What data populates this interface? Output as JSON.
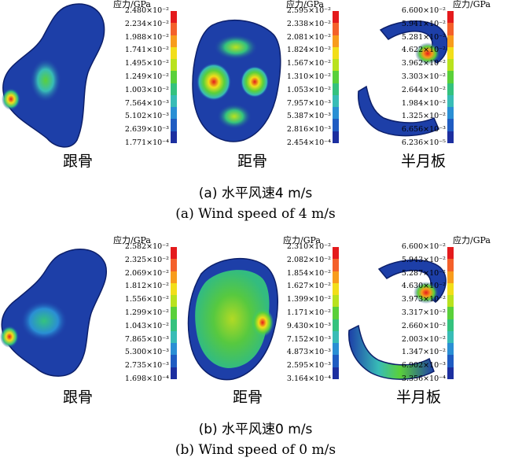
{
  "rows": [
    {
      "caption_zh": "(a) 水平风速4 m/s",
      "caption_en": "(a) Wind speed of 4 m/s",
      "panels": [
        {
          "name": "跟骨",
          "unit": "应力/GPa",
          "labels": [
            "2.480×10⁻²",
            "2.234×10⁻²",
            "1.988×10⁻²",
            "1.741×10⁻²",
            "1.495×10⁻²",
            "1.249×10⁻²",
            "1.003×10⁻²",
            "7.564×10⁻³",
            "5.102×10⁻³",
            "2.639×10⁻³",
            "1.771×10⁻⁴"
          ]
        },
        {
          "name": "距骨",
          "unit": "应力/GPa",
          "labels": [
            "2.595×10⁻²",
            "2.338×10⁻²",
            "2.081×10⁻²",
            "1.824×10⁻²",
            "1.567×10⁻²",
            "1.310×10⁻²",
            "1.053×10⁻²",
            "7.957×10⁻³",
            "5.387×10⁻³",
            "2.816×10⁻³",
            "2.454×10⁻⁴"
          ]
        },
        {
          "name": "半月板",
          "unit": "应力/GPa",
          "labels": [
            "6.600×10⁻²",
            "5.941×10⁻²",
            "5.281×10⁻²",
            "4.622×10⁻²",
            "3.962×10⁻²",
            "3.303×10⁻²",
            "2.644×10⁻²",
            "1.984×10⁻²",
            "1.325×10⁻²",
            "6.656×10⁻³",
            "6.236×10⁻⁵"
          ]
        }
      ]
    },
    {
      "caption_zh": "(b) 水平风速0 m/s",
      "caption_en": "(b) Wind speed of 0 m/s",
      "panels": [
        {
          "name": "跟骨",
          "unit": "应力/GPa",
          "labels": [
            "2.582×10⁻²",
            "2.325×10⁻²",
            "2.069×10⁻²",
            "1.812×10⁻²",
            "1.556×10⁻²",
            "1.299×10⁻²",
            "1.043×10⁻²",
            "7.865×10⁻³",
            "5.300×10⁻³",
            "2.735×10⁻³",
            "1.698×10⁻⁴"
          ]
        },
        {
          "name": "距骨",
          "unit": "应力/GPa",
          "labels": [
            "2.310×10⁻²",
            "2.082×10⁻²",
            "1.854×10⁻²",
            "1.627×10⁻²",
            "1.399×10⁻²",
            "1.171×10⁻²",
            "9.430×10⁻³",
            "7.152×10⁻³",
            "4.873×10⁻³",
            "2.595×10⁻³",
            "3.164×10⁻⁴"
          ]
        },
        {
          "name": "半月板",
          "unit": "应力/GPa",
          "labels": [
            "6.600×10⁻²",
            "5.943×10⁻²",
            "5.287×10⁻²",
            "4.630×10⁻²",
            "3.973×10⁻²",
            "3.317×10⁻²",
            "2.660×10⁻²",
            "2.003×10⁻²",
            "1.347×10⁻²",
            "6.902×10⁻³",
            "3.356×10⁻⁴"
          ]
        }
      ]
    }
  ],
  "colors": {
    "scale": [
      "#e41a1c",
      "#f4602a",
      "#f89c1c",
      "#f2de1a",
      "#b9e21e",
      "#5ad03a",
      "#34c27e",
      "#38bcb6",
      "#2a8fd4",
      "#1f5cc2",
      "#1c2fa0"
    ],
    "bone_base": "#1d3fa8",
    "bone_edge": "#0c1f6a"
  }
}
